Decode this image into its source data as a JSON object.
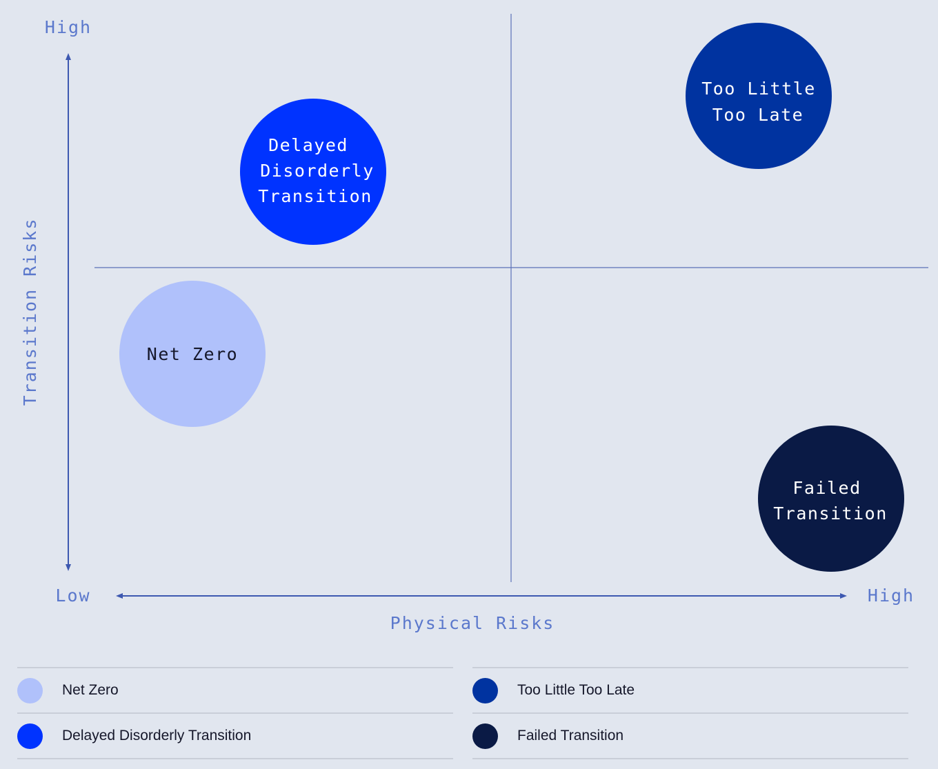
{
  "axes": {
    "y_high": "High",
    "y_title": "Transition Risks",
    "x_low": "Low",
    "x_high": "High",
    "x_title": "Physical Risks"
  },
  "colors": {
    "background": "#e1e6ef",
    "axis": "#3d58b0",
    "axis_text": "#5b78cc",
    "net_zero": "#b0c1fb",
    "delayed": "#0033ff",
    "too_little": "#0033a0",
    "failed": "#0a1a45"
  },
  "bubbles": [
    {
      "id": "delayed-disorderly-transition",
      "lines": [
        "Delayed",
        "Disorderly",
        "Transition"
      ],
      "color": "#0033ff",
      "text_color": "#ffffff",
      "physical_risk": "low",
      "transition_risk": "high"
    },
    {
      "id": "too-little-too-late",
      "lines": [
        "Too Little",
        "Too Late"
      ],
      "color": "#0033a0",
      "text_color": "#ffffff",
      "physical_risk": "high",
      "transition_risk": "high"
    },
    {
      "id": "net-zero",
      "lines": [
        "Net Zero"
      ],
      "color": "#b0c1fb",
      "text_color": "#15172a",
      "physical_risk": "low",
      "transition_risk": "low"
    },
    {
      "id": "failed-transition",
      "lines": [
        "Failed",
        "Transition"
      ],
      "color": "#0a1a45",
      "text_color": "#ffffff",
      "physical_risk": "high",
      "transition_risk": "low"
    }
  ],
  "legend": {
    "left": [
      {
        "label": "Net Zero",
        "color": "#b0c1fb"
      },
      {
        "label": "Delayed Disorderly Transition",
        "color": "#0033ff"
      }
    ],
    "right": [
      {
        "label": "Too Little Too Late",
        "color": "#0033a0"
      },
      {
        "label": "Failed Transition",
        "color": "#0a1a45"
      }
    ]
  }
}
